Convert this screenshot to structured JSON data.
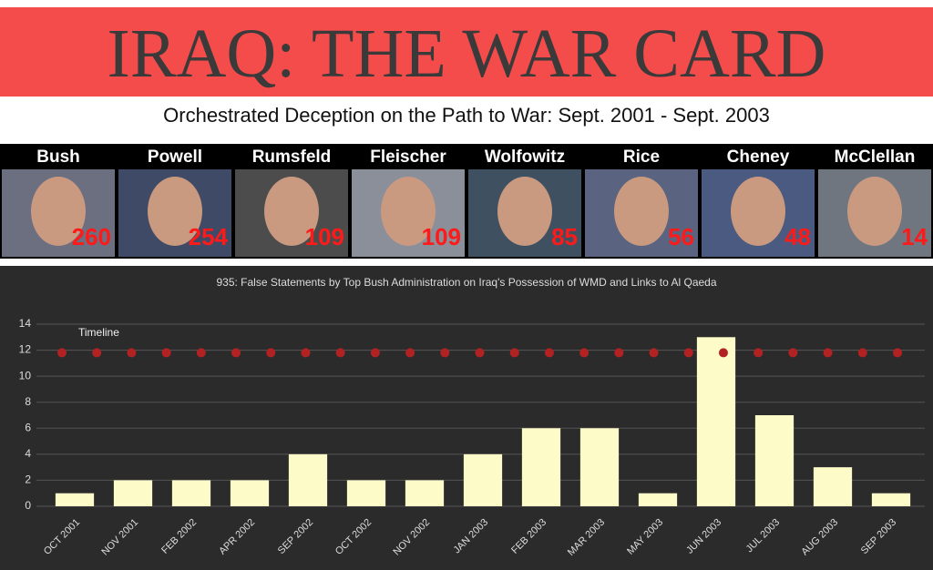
{
  "header": {
    "title": "IRAQ: THE WAR CARD",
    "subtitle": "Orchestrated Deception on the Path to War: Sept. 2001 - Sept. 2003"
  },
  "people": [
    {
      "name": "Bush",
      "count": 260
    },
    {
      "name": "Powell",
      "count": 254
    },
    {
      "name": "Rumsfeld",
      "count": 109
    },
    {
      "name": "Fleischer",
      "count": 109
    },
    {
      "name": "Wolfowitz",
      "count": 85
    },
    {
      "name": "Rice",
      "count": 56
    },
    {
      "name": "Cheney",
      "count": 48
    },
    {
      "name": "McClellan",
      "count": 14
    }
  ],
  "chart_data": {
    "type": "bar",
    "title": "935: False Statements by Top Bush Administration on Iraq's Possession of WMD and Links to Al Qaeda",
    "categories": [
      "OCT 2001",
      "NOV 2001",
      "FEB 2002",
      "APR 2002",
      "SEP 2002",
      "OCT 2002",
      "NOV 2002",
      "JAN 2003",
      "FEB 2003",
      "MAR 2003",
      "MAY 2003",
      "JUN 2003",
      "JUL 2003",
      "AUG 2003",
      "SEP 2003"
    ],
    "values": [
      1,
      2,
      2,
      2,
      4,
      2,
      2,
      4,
      6,
      6,
      1,
      13,
      7,
      3,
      1
    ],
    "color": "#fdfcc8",
    "ylim": [
      0,
      14
    ],
    "yticks": [
      0,
      2,
      4,
      6,
      8,
      10,
      12,
      14
    ],
    "grid": true,
    "timeline": {
      "name": "Timeline",
      "color": "#b22222",
      "values": [
        11.8,
        11.8,
        11.8,
        11.8,
        11.8,
        11.8,
        11.8,
        11.8,
        11.8,
        11.8,
        11.8,
        11.8,
        11.8,
        11.8,
        11.8,
        11.8,
        11.8,
        11.8,
        11.8,
        11.8,
        11.8,
        11.8,
        11.8,
        11.8,
        11.8
      ]
    }
  }
}
